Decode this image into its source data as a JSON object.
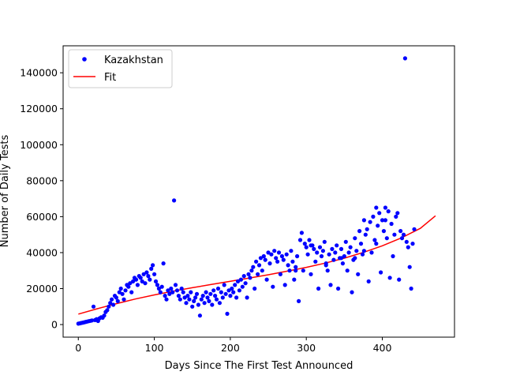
{
  "chart_data": {
    "type": "scatter",
    "xlabel": "Days Since The First Test Announced",
    "ylabel": "Number of Daily Tests",
    "xlim": [
      -20,
      495
    ],
    "ylim": [
      -7000,
      155000
    ],
    "xticks": [
      0,
      100,
      200,
      300,
      400
    ],
    "yticks": [
      0,
      20000,
      40000,
      60000,
      80000,
      100000,
      120000,
      140000
    ],
    "legend_position": "top-left",
    "grid": false,
    "series": [
      {
        "name": "Kazakhstan",
        "kind": "scatter",
        "color": "#0000ff",
        "points": [
          [
            0,
            500
          ],
          [
            2,
            700
          ],
          [
            4,
            900
          ],
          [
            6,
            1100
          ],
          [
            8,
            1300
          ],
          [
            10,
            1500
          ],
          [
            12,
            1700
          ],
          [
            14,
            1900
          ],
          [
            16,
            2100
          ],
          [
            18,
            2300
          ],
          [
            20,
            10000
          ],
          [
            22,
            2500
          ],
          [
            24,
            3000
          ],
          [
            26,
            2000
          ],
          [
            28,
            3500
          ],
          [
            30,
            4000
          ],
          [
            32,
            3800
          ],
          [
            34,
            5000
          ],
          [
            36,
            7000
          ],
          [
            38,
            8000
          ],
          [
            40,
            10000
          ],
          [
            42,
            12000
          ],
          [
            44,
            14000
          ],
          [
            46,
            11000
          ],
          [
            48,
            16000
          ],
          [
            50,
            15000
          ],
          [
            52,
            13000
          ],
          [
            54,
            18000
          ],
          [
            56,
            20000
          ],
          [
            58,
            17000
          ],
          [
            60,
            14000
          ],
          [
            62,
            19000
          ],
          [
            64,
            22000
          ],
          [
            66,
            21000
          ],
          [
            68,
            23000
          ],
          [
            70,
            18000
          ],
          [
            72,
            24000
          ],
          [
            74,
            26000
          ],
          [
            76,
            25000
          ],
          [
            78,
            22000
          ],
          [
            80,
            27000
          ],
          [
            82,
            26000
          ],
          [
            84,
            24000
          ],
          [
            86,
            28000
          ],
          [
            88,
            23000
          ],
          [
            90,
            29000
          ],
          [
            92,
            27000
          ],
          [
            94,
            25000
          ],
          [
            96,
            31000
          ],
          [
            98,
            33000
          ],
          [
            100,
            28000
          ],
          [
            102,
            24000
          ],
          [
            104,
            22000
          ],
          [
            106,
            20000
          ],
          [
            108,
            18000
          ],
          [
            110,
            21000
          ],
          [
            112,
            34000
          ],
          [
            114,
            16000
          ],
          [
            116,
            14000
          ],
          [
            118,
            19000
          ],
          [
            120,
            17000
          ],
          [
            122,
            20000
          ],
          [
            124,
            18000
          ],
          [
            126,
            69000
          ],
          [
            128,
            22000
          ],
          [
            130,
            19000
          ],
          [
            132,
            16000
          ],
          [
            134,
            14000
          ],
          [
            136,
            20000
          ],
          [
            138,
            18000
          ],
          [
            140,
            15000
          ],
          [
            142,
            12000
          ],
          [
            144,
            16000
          ],
          [
            146,
            14000
          ],
          [
            148,
            18000
          ],
          [
            150,
            10000
          ],
          [
            152,
            13000
          ],
          [
            154,
            15000
          ],
          [
            156,
            17000
          ],
          [
            158,
            11000
          ],
          [
            160,
            5000
          ],
          [
            162,
            14000
          ],
          [
            164,
            16000
          ],
          [
            166,
            12000
          ],
          [
            168,
            18000
          ],
          [
            170,
            15000
          ],
          [
            172,
            13000
          ],
          [
            174,
            17000
          ],
          [
            176,
            11000
          ],
          [
            178,
            19000
          ],
          [
            180,
            16000
          ],
          [
            182,
            14000
          ],
          [
            184,
            20000
          ],
          [
            186,
            12000
          ],
          [
            188,
            18000
          ],
          [
            190,
            15000
          ],
          [
            192,
            22000
          ],
          [
            194,
            17000
          ],
          [
            196,
            6000
          ],
          [
            198,
            19000
          ],
          [
            200,
            16000
          ],
          [
            202,
            20000
          ],
          [
            204,
            18000
          ],
          [
            206,
            22000
          ],
          [
            208,
            15000
          ],
          [
            210,
            24000
          ],
          [
            212,
            19000
          ],
          [
            214,
            25000
          ],
          [
            216,
            21000
          ],
          [
            218,
            27000
          ],
          [
            220,
            23000
          ],
          [
            222,
            15000
          ],
          [
            224,
            28000
          ],
          [
            226,
            26000
          ],
          [
            228,
            30000
          ],
          [
            230,
            32000
          ],
          [
            232,
            20000
          ],
          [
            234,
            35000
          ],
          [
            236,
            28000
          ],
          [
            238,
            33000
          ],
          [
            240,
            37000
          ],
          [
            242,
            30000
          ],
          [
            244,
            38000
          ],
          [
            246,
            36000
          ],
          [
            248,
            25000
          ],
          [
            250,
            40000
          ],
          [
            252,
            34000
          ],
          [
            254,
            39000
          ],
          [
            256,
            21000
          ],
          [
            258,
            41000
          ],
          [
            260,
            37000
          ],
          [
            262,
            35000
          ],
          [
            264,
            40000
          ],
          [
            266,
            28000
          ],
          [
            268,
            38000
          ],
          [
            270,
            36000
          ],
          [
            272,
            22000
          ],
          [
            274,
            39000
          ],
          [
            276,
            33000
          ],
          [
            278,
            30000
          ],
          [
            280,
            41000
          ],
          [
            282,
            35000
          ],
          [
            284,
            25000
          ],
          [
            286,
            32000
          ],
          [
            288,
            38000
          ],
          [
            290,
            13000
          ],
          [
            292,
            47000
          ],
          [
            294,
            51000
          ],
          [
            296,
            30000
          ],
          [
            298,
            45000
          ],
          [
            300,
            43000
          ],
          [
            302,
            39000
          ],
          [
            304,
            47000
          ],
          [
            306,
            28000
          ],
          [
            308,
            44000
          ],
          [
            310,
            42000
          ],
          [
            312,
            35000
          ],
          [
            314,
            40000
          ],
          [
            316,
            20000
          ],
          [
            318,
            43000
          ],
          [
            320,
            38000
          ],
          [
            322,
            41000
          ],
          [
            324,
            46000
          ],
          [
            326,
            33000
          ],
          [
            328,
            30000
          ],
          [
            330,
            39000
          ],
          [
            332,
            22000
          ],
          [
            334,
            42000
          ],
          [
            336,
            36000
          ],
          [
            338,
            40000
          ],
          [
            340,
            44000
          ],
          [
            342,
            20000
          ],
          [
            344,
            37000
          ],
          [
            346,
            42000
          ],
          [
            348,
            34000
          ],
          [
            350,
            38000
          ],
          [
            352,
            46000
          ],
          [
            354,
            30000
          ],
          [
            356,
            40000
          ],
          [
            358,
            43000
          ],
          [
            360,
            18000
          ],
          [
            362,
            36000
          ],
          [
            364,
            48000
          ],
          [
            366,
            41000
          ],
          [
            368,
            28000
          ],
          [
            370,
            52000
          ],
          [
            372,
            45000
          ],
          [
            374,
            39000
          ],
          [
            376,
            58000
          ],
          [
            378,
            50000
          ],
          [
            380,
            53000
          ],
          [
            382,
            24000
          ],
          [
            384,
            57000
          ],
          [
            386,
            40000
          ],
          [
            388,
            60000
          ],
          [
            390,
            47000
          ],
          [
            392,
            65000
          ],
          [
            394,
            55000
          ],
          [
            396,
            62000
          ],
          [
            398,
            29000
          ],
          [
            400,
            58000
          ],
          [
            402,
            52000
          ],
          [
            404,
            65000
          ],
          [
            406,
            48000
          ],
          [
            408,
            63000
          ],
          [
            410,
            26000
          ],
          [
            412,
            56000
          ],
          [
            414,
            38000
          ],
          [
            416,
            50000
          ],
          [
            418,
            60000
          ],
          [
            420,
            62000
          ],
          [
            422,
            25000
          ],
          [
            424,
            52000
          ],
          [
            426,
            48000
          ],
          [
            428,
            50000
          ],
          [
            430,
            148000
          ],
          [
            432,
            46000
          ],
          [
            434,
            43000
          ],
          [
            436,
            32000
          ],
          [
            438,
            20000
          ],
          [
            440,
            45000
          ],
          [
            442,
            53000
          ],
          [
            404,
            58000
          ],
          [
            392,
            45000
          ],
          [
            376,
            41000
          ],
          [
            364,
            37000
          ],
          [
            346,
            37000
          ],
          [
            326,
            34000
          ],
          [
            306,
            44000
          ],
          [
            286,
            30000
          ]
        ]
      },
      {
        "name": "Fit",
        "kind": "line",
        "color": "#ff0000",
        "points": [
          [
            0,
            5800
          ],
          [
            25,
            8800
          ],
          [
            50,
            11600
          ],
          [
            75,
            14200
          ],
          [
            100,
            16500
          ],
          [
            125,
            18600
          ],
          [
            150,
            20500
          ],
          [
            175,
            22300
          ],
          [
            200,
            24100
          ],
          [
            225,
            25900
          ],
          [
            250,
            27700
          ],
          [
            275,
            29700
          ],
          [
            300,
            31800
          ],
          [
            325,
            34200
          ],
          [
            350,
            36900
          ],
          [
            375,
            40100
          ],
          [
            400,
            43800
          ],
          [
            425,
            48200
          ],
          [
            450,
            53500
          ],
          [
            470,
            60500
          ]
        ]
      }
    ]
  }
}
